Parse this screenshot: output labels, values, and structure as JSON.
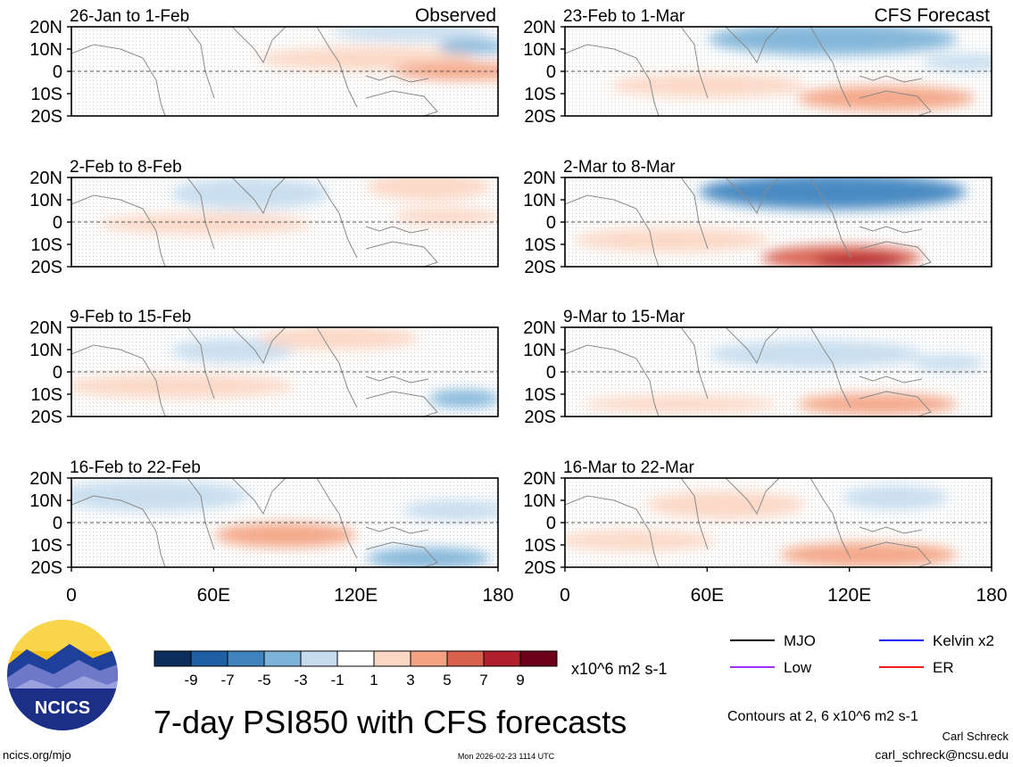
{
  "figure": {
    "title": "7-day PSI850 with CFS forecasts",
    "observed_label": "Observed",
    "forecast_label": "CFS Forecast",
    "units": "x10^6 m2 s-1",
    "contour_note": "Contours at 2, 6 x10^6 m2 s-1",
    "author": "Carl Schreck",
    "email": "carl_schreck@ncsu.edu",
    "website": "ncics.org/mjo",
    "timestamp": "Mon 2026-02-23 1114 UTC",
    "logo_text": "NCICS"
  },
  "axes": {
    "y_ticks": [
      "20N",
      "10N",
      "0",
      "10S",
      "20S"
    ],
    "x_ticks": [
      "0",
      "60E",
      "120E",
      "180"
    ]
  },
  "colorbar": {
    "labels": [
      "-9",
      "-7",
      "-5",
      "-3",
      "-1",
      "1",
      "3",
      "5",
      "7",
      "9"
    ],
    "colors": [
      "#0b2e5a",
      "#1f5fa3",
      "#3f84bf",
      "#7db3d8",
      "#c6dcee",
      "#ffffff",
      "#fcd7c4",
      "#f3a383",
      "#d9604d",
      "#b0202c",
      "#6b0018"
    ]
  },
  "legend": [
    {
      "label": "MJO",
      "color": "#000000"
    },
    {
      "label": "Kelvin x2",
      "color": "#1a1aff"
    },
    {
      "label": "Low",
      "color": "#9b30ff"
    },
    {
      "label": "ER",
      "color": "#ee1c1c"
    }
  ],
  "chart_data": {
    "type": "heatmap",
    "variable": "7-day PSI850 anomaly",
    "xlim": [
      0,
      180
    ],
    "ylim": [
      -20,
      20
    ],
    "panels": [
      {
        "id": "obs-1",
        "column": "observed",
        "label": "26-Jan to 1-Feb"
      },
      {
        "id": "obs-2",
        "column": "observed",
        "label": "2-Feb to 8-Feb"
      },
      {
        "id": "obs-3",
        "column": "observed",
        "label": "9-Feb to 15-Feb"
      },
      {
        "id": "obs-4",
        "column": "observed",
        "label": "16-Feb to 22-Feb"
      },
      {
        "id": "fc-1",
        "column": "forecast",
        "label": "23-Feb to 1-Mar"
      },
      {
        "id": "fc-2",
        "column": "forecast",
        "label": "2-Mar to 8-Mar"
      },
      {
        "id": "fc-3",
        "column": "forecast",
        "label": "9-Mar to 15-Mar"
      },
      {
        "id": "fc-4",
        "column": "forecast",
        "label": "16-Mar to 22-Mar"
      }
    ]
  }
}
